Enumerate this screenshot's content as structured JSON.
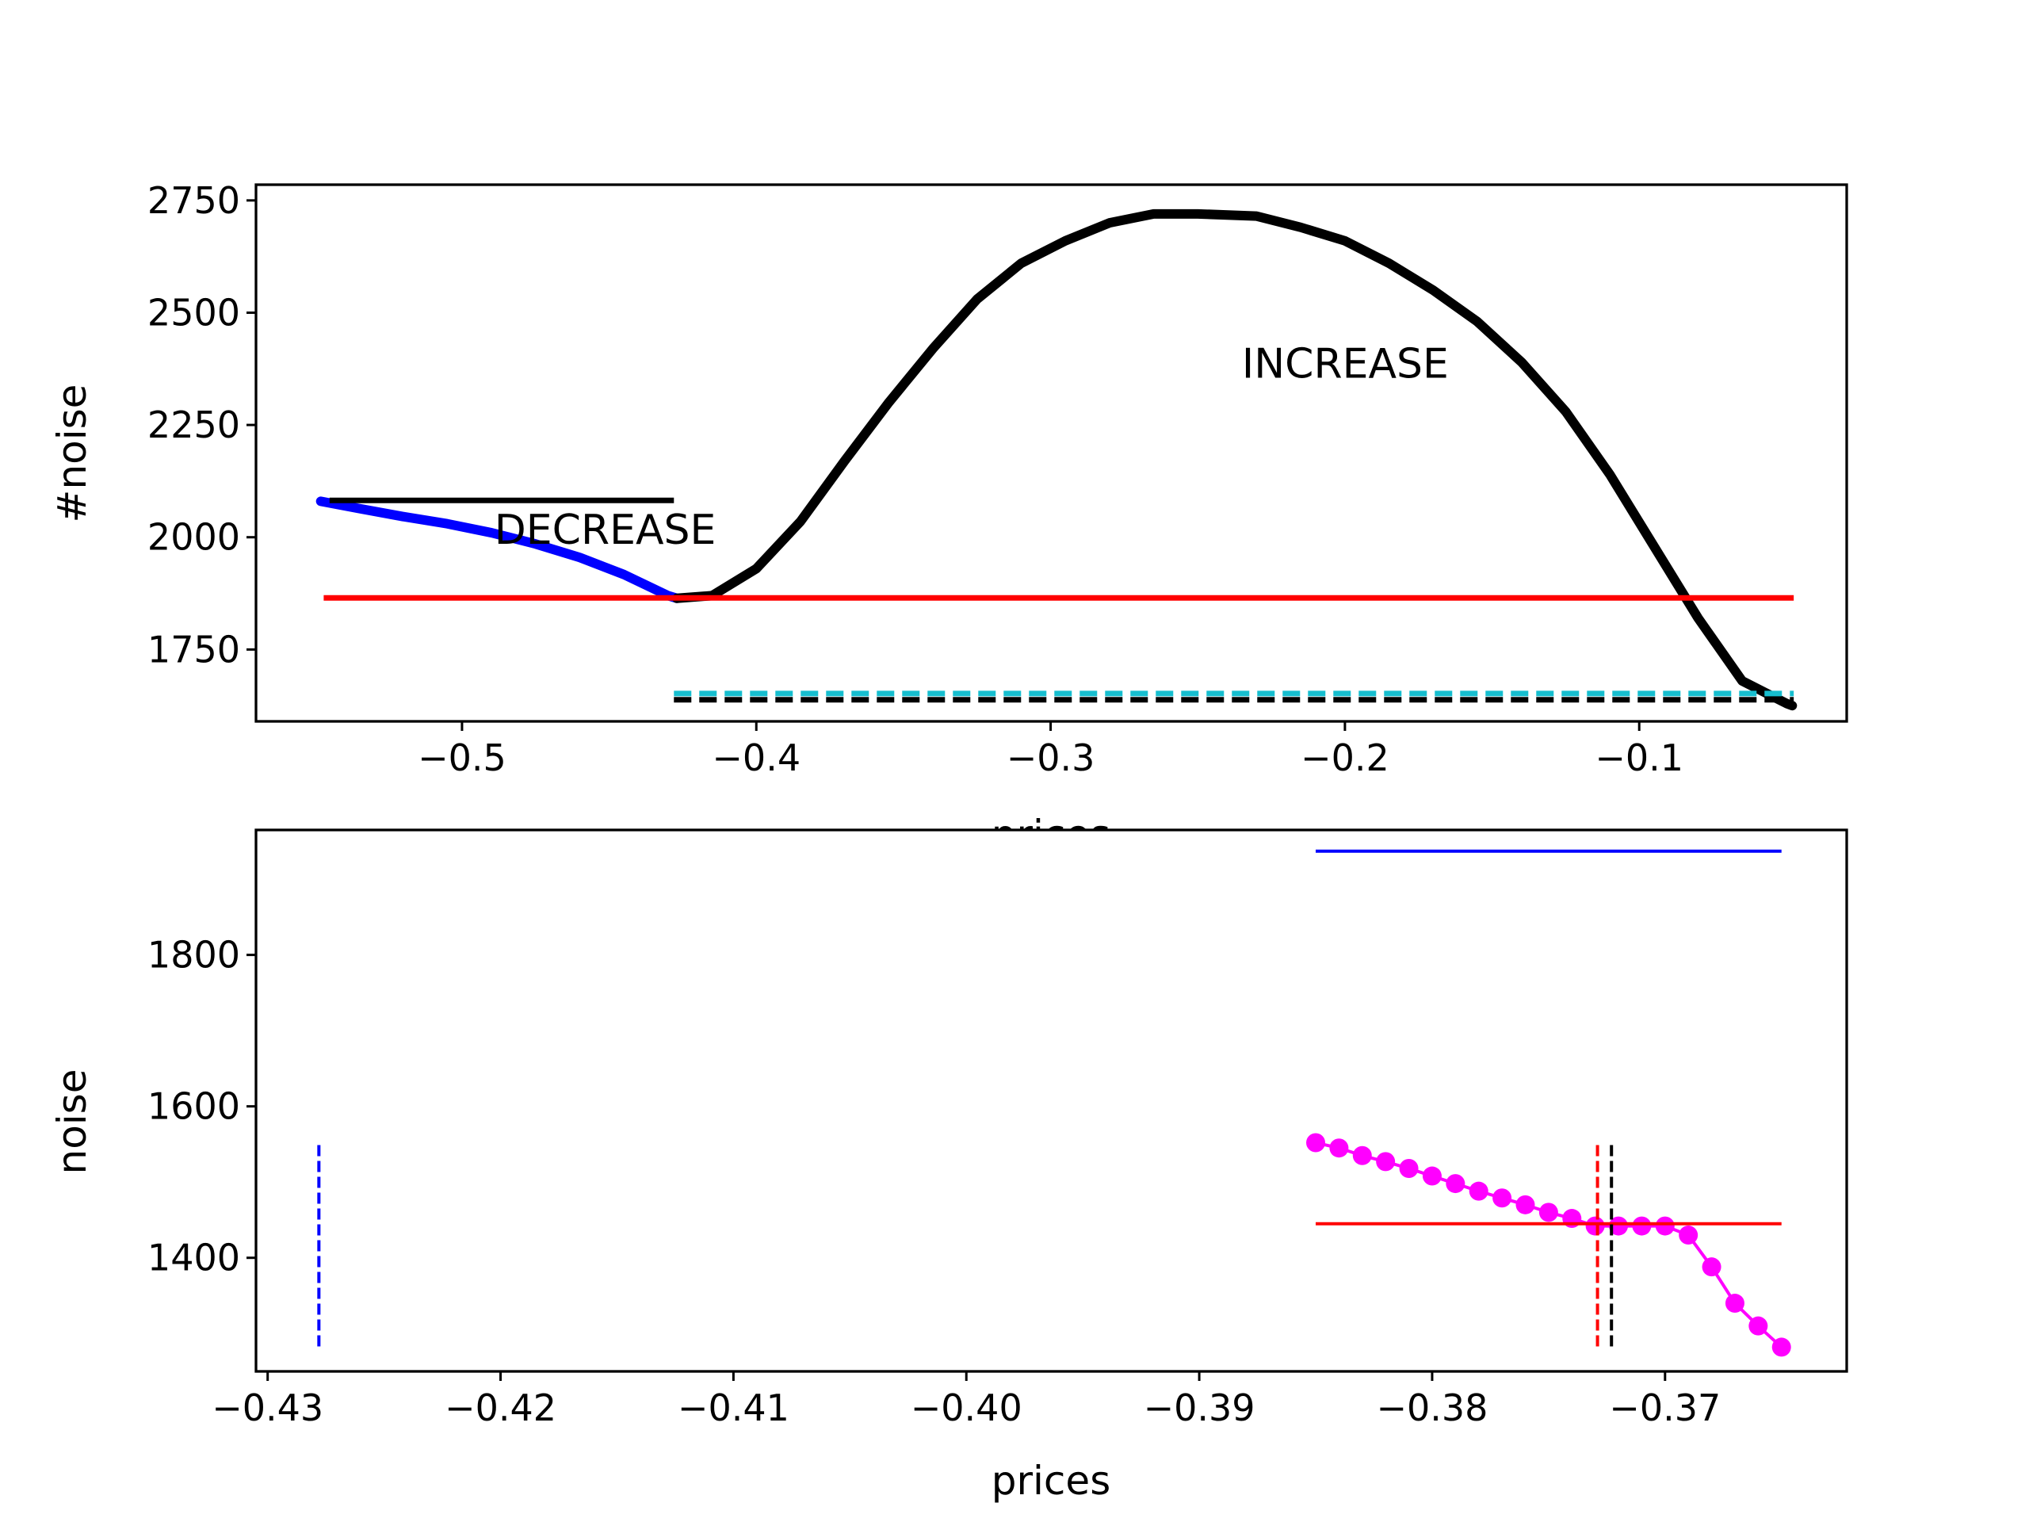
{
  "chart_data": [
    {
      "type": "line",
      "xlabel": "prices",
      "ylabel": "#noise",
      "xlim": [
        -0.57,
        -0.0295
      ],
      "ylim": [
        1590,
        2785
      ],
      "xticks": [
        -0.5,
        -0.4,
        -0.3,
        -0.2,
        -0.1
      ],
      "xtick_labels": [
        "−0.5",
        "−0.4",
        "−0.3",
        "−0.2",
        "−0.1"
      ],
      "yticks": [
        1750,
        2000,
        2250,
        2500,
        2750
      ],
      "ytick_labels": [
        "1750",
        "2000",
        "2250",
        "2500",
        "2750"
      ],
      "grid": false,
      "annotations": [
        {
          "text": "DECREASE",
          "x": -0.489,
          "y": 1985
        },
        {
          "text": "INCREASE",
          "x": -0.235,
          "y": 2355
        }
      ],
      "series": [
        {
          "style": "dense-markers",
          "color": "#0000ff",
          "x": [
            -0.548,
            -0.535,
            -0.52,
            -0.505,
            -0.49,
            -0.475,
            -0.46,
            -0.445,
            -0.43,
            -0.427
          ],
          "y": [
            2080,
            2064,
            2046,
            2030,
            2010,
            1985,
            1955,
            1917,
            1870,
            1864
          ]
        },
        {
          "style": "dense-markers",
          "color": "#000000",
          "x": [
            -0.427,
            -0.415,
            -0.4,
            -0.385,
            -0.37,
            -0.355,
            -0.34,
            -0.325,
            -0.31,
            -0.295,
            -0.28,
            -0.265,
            -0.25,
            -0.23,
            -0.215,
            -0.2,
            -0.185,
            -0.17,
            -0.155,
            -0.14,
            -0.125,
            -0.11,
            -0.095,
            -0.08,
            -0.065,
            -0.05,
            -0.048
          ],
          "y": [
            1864,
            1870,
            1930,
            2035,
            2170,
            2300,
            2420,
            2530,
            2610,
            2660,
            2700,
            2720,
            2720,
            2715,
            2690,
            2660,
            2610,
            2550,
            2480,
            2390,
            2280,
            2140,
            1980,
            1820,
            1680,
            1630,
            1625
          ]
        },
        {
          "style": "hline",
          "color": "#000000",
          "y": 2082,
          "xmin": -0.545,
          "xmax": -0.428
        },
        {
          "style": "hline",
          "color": "#ff0000",
          "y": 1865,
          "xmin": -0.547,
          "xmax": -0.0475
        },
        {
          "style": "hline-dashed",
          "color": "#17becf",
          "y": 1652,
          "xmin": -0.428,
          "xmax": -0.0475
        },
        {
          "style": "hline-dashed",
          "color": "#000000",
          "y": 1638,
          "xmin": -0.428,
          "xmax": -0.0475
        }
      ]
    },
    {
      "type": "line",
      "xlabel": "prices",
      "ylabel": "noise",
      "xlim": [
        -0.4305,
        -0.3622
      ],
      "ylim": [
        1250,
        1965
      ],
      "xticks": [
        -0.43,
        -0.42,
        -0.41,
        -0.4,
        -0.39,
        -0.38,
        -0.37
      ],
      "xtick_labels": [
        "−0.43",
        "−0.42",
        "−0.41",
        "−0.40",
        "−0.39",
        "−0.38",
        "−0.37"
      ],
      "yticks": [
        1400,
        1600,
        1800
      ],
      "ytick_labels": [
        "1400",
        "1600",
        "1800"
      ],
      "grid": false,
      "series": [
        {
          "style": "line-markers",
          "color": "#ff00ff",
          "x": [
            -0.385,
            -0.384,
            -0.383,
            -0.382,
            -0.381,
            -0.38,
            -0.379,
            -0.378,
            -0.377,
            -0.376,
            -0.375,
            -0.374,
            -0.373,
            -0.372,
            -0.371,
            -0.37,
            -0.369,
            -0.368,
            -0.367,
            -0.366,
            -0.365
          ],
          "y": [
            1552,
            1545,
            1535,
            1527,
            1518,
            1508,
            1498,
            1488,
            1479,
            1470,
            1460,
            1452,
            1442,
            1442,
            1442,
            1442,
            1430,
            1388,
            1340,
            1310,
            1282
          ]
        },
        {
          "style": "hline",
          "color": "#0000ff",
          "y": 1937,
          "xmin": -0.385,
          "xmax": -0.365
        },
        {
          "style": "hline",
          "color": "#ff0000",
          "y": 1445,
          "xmin": -0.385,
          "xmax": -0.365
        },
        {
          "style": "vline-dashed",
          "color": "#0000ff",
          "x": -0.4278,
          "ymin": 1283,
          "ymax": 1552
        },
        {
          "style": "vline-dashed",
          "color": "#ff0000",
          "x": -0.3729,
          "ymin": 1283,
          "ymax": 1552
        },
        {
          "style": "vline-dashed",
          "color": "#000000",
          "x": -0.3723,
          "ymin": 1283,
          "ymax": 1552
        }
      ]
    }
  ]
}
